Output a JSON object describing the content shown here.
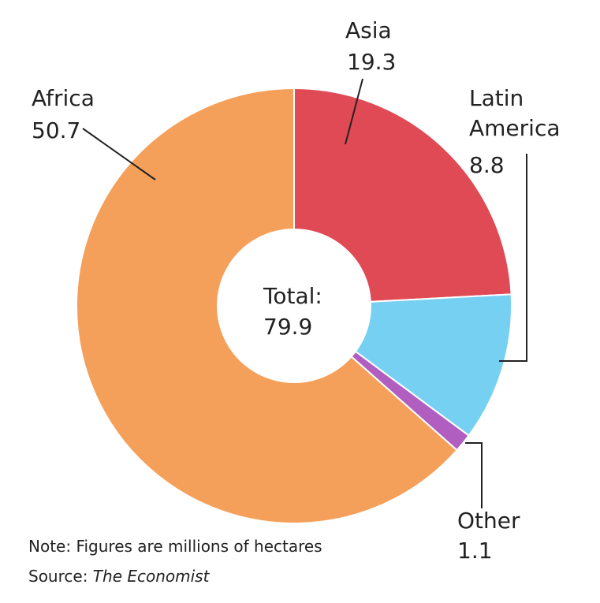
{
  "chart_data": {
    "type": "donut",
    "categories": [
      "Asia",
      "Latin America",
      "Other",
      "Africa"
    ],
    "values": [
      19.3,
      8.8,
      1.1,
      50.7
    ],
    "colors": [
      "#e04a54",
      "#76d0f2",
      "#b05fc0",
      "#f5a05a"
    ],
    "total_label": "Total:",
    "total": 79.9,
    "note": "Note: Figures are millions of hectares",
    "source_label": "Source:",
    "source": "The Economist"
  }
}
